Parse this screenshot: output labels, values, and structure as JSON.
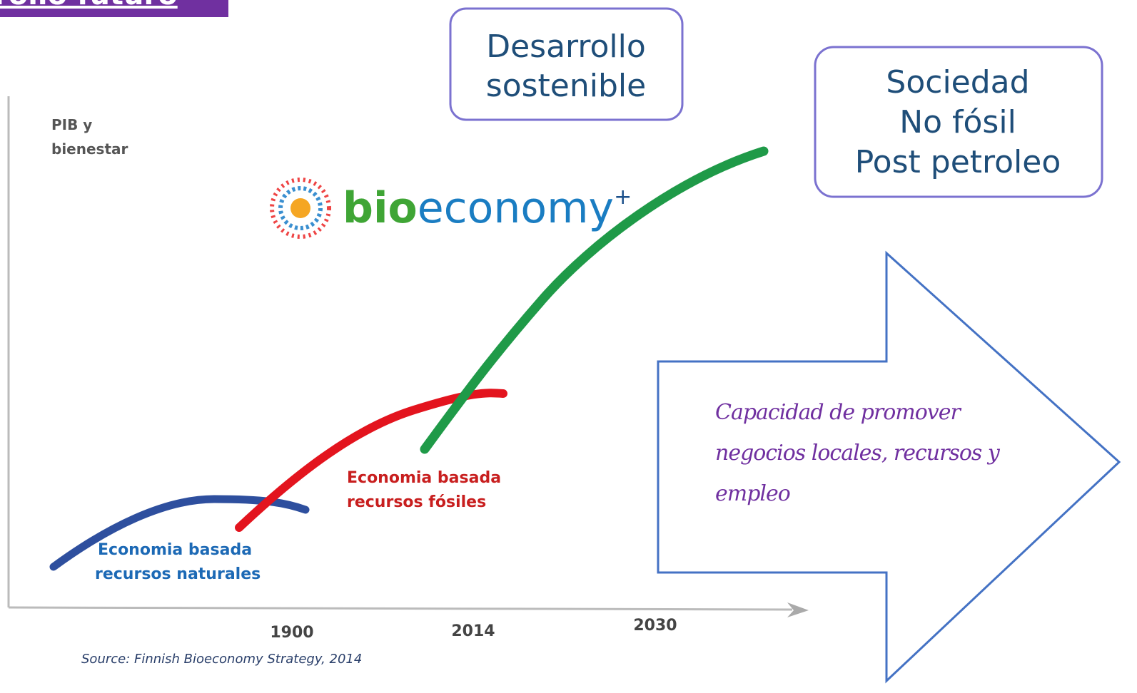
{
  "header": {
    "title": "rollo futuro"
  },
  "boxes": [
    {
      "lines": [
        "Desarrollo",
        "sostenible"
      ]
    },
    {
      "lines": [
        "Sociedad",
        "No fósil",
        "Post petroleo"
      ]
    }
  ],
  "chart": {
    "y_label": [
      "PIB y",
      "bienestar"
    ],
    "x_labels": [
      "1900",
      "2014",
      "2030"
    ],
    "logo": {
      "bio": "bio",
      "economy": "economy",
      "plus": "+"
    },
    "eras": [
      {
        "lines": [
          "Economia basada",
          "recursos naturales"
        ]
      },
      {
        "lines": [
          "Economia basada",
          "recursos fósiles"
        ]
      }
    ],
    "source": "Source: Finnish Bioeconomy Strategy, 2014"
  },
  "arrow": {
    "lines": [
      "Capacidad de promover",
      "negocios locales, recursos y",
      "empleo"
    ]
  }
}
